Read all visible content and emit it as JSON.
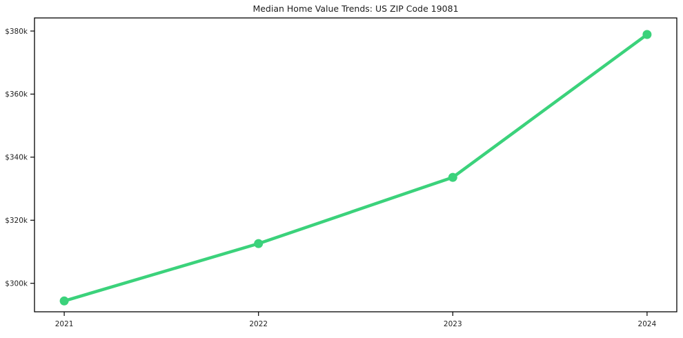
{
  "page": {
    "background_color": "#ffffff"
  },
  "chart_data": {
    "type": "line",
    "title": "Median Home Value Trends: US ZIP Code 19081",
    "categories": [
      "2021",
      "2022",
      "2023",
      "2024"
    ],
    "series": [
      {
        "name": "Median Home Value",
        "values": [
          294400,
          312600,
          333600,
          378900
        ]
      }
    ],
    "xlabel": "",
    "ylabel": "",
    "y_ticks": [
      {
        "value": 300000,
        "label": "$300k"
      },
      {
        "value": 320000,
        "label": "$320k"
      },
      {
        "value": 340000,
        "label": "$340k"
      },
      {
        "value": 360000,
        "label": "$360k"
      },
      {
        "value": 380000,
        "label": "$380k"
      }
    ],
    "ylim": [
      290965,
      384156
    ],
    "xlim": [
      -0.153,
      3.153
    ],
    "grid": false,
    "legend": "none",
    "line_color": "#3bd27b",
    "marker": "circle",
    "axis_color": "#000000",
    "text_color": "#1f1f1f"
  }
}
